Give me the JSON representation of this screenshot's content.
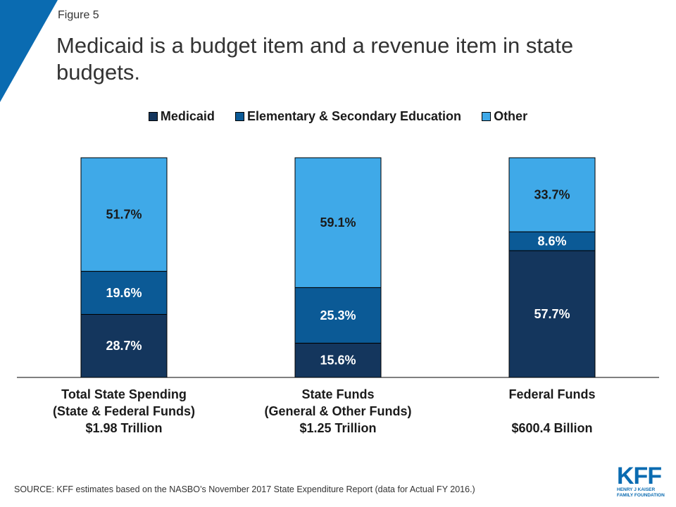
{
  "figure_label": "Figure 5",
  "title": "Medicaid is a budget item and a revenue item in state budgets.",
  "source": "SOURCE: KFF estimates based on the NASBO’s November 2017 State Expenditure Report (data for Actual FY 2016.)",
  "logo": {
    "mark": "KFF",
    "line1": "HENRY J KAISER",
    "line2": "FAMILY FOUNDATION"
  },
  "colors": {
    "corner": "#0a6bb1",
    "axis": "#000000"
  },
  "chart_data": {
    "type": "bar",
    "stacked": true,
    "ylim": [
      0,
      100
    ],
    "categories": [
      "Total State Spending",
      "State Funds",
      "Federal Funds"
    ],
    "category_labels": [
      [
        "Total State Spending",
        "(State & Federal Funds)",
        "$1.98 Trillion"
      ],
      [
        "State Funds",
        "(General & Other Funds)",
        "$1.25 Trillion"
      ],
      [
        "Federal Funds",
        "",
        "$600.4 Billion"
      ]
    ],
    "legend_position": "top",
    "series": [
      {
        "name": "Medicaid",
        "color": "#14365d",
        "values": [
          28.7,
          15.6,
          57.7
        ],
        "labels": [
          "28.7%",
          "15.6%",
          "57.7%"
        ]
      },
      {
        "name": "Elementary & Secondary Education",
        "color": "#0b5a96",
        "values": [
          19.6,
          25.3,
          8.6
        ],
        "labels": [
          "19.6%",
          "25.3%",
          "8.6%"
        ]
      },
      {
        "name": "Other",
        "color": "#3fa9e8",
        "values": [
          51.7,
          59.1,
          33.7
        ],
        "labels": [
          "51.7%",
          "59.1%",
          "33.7%"
        ]
      }
    ]
  }
}
